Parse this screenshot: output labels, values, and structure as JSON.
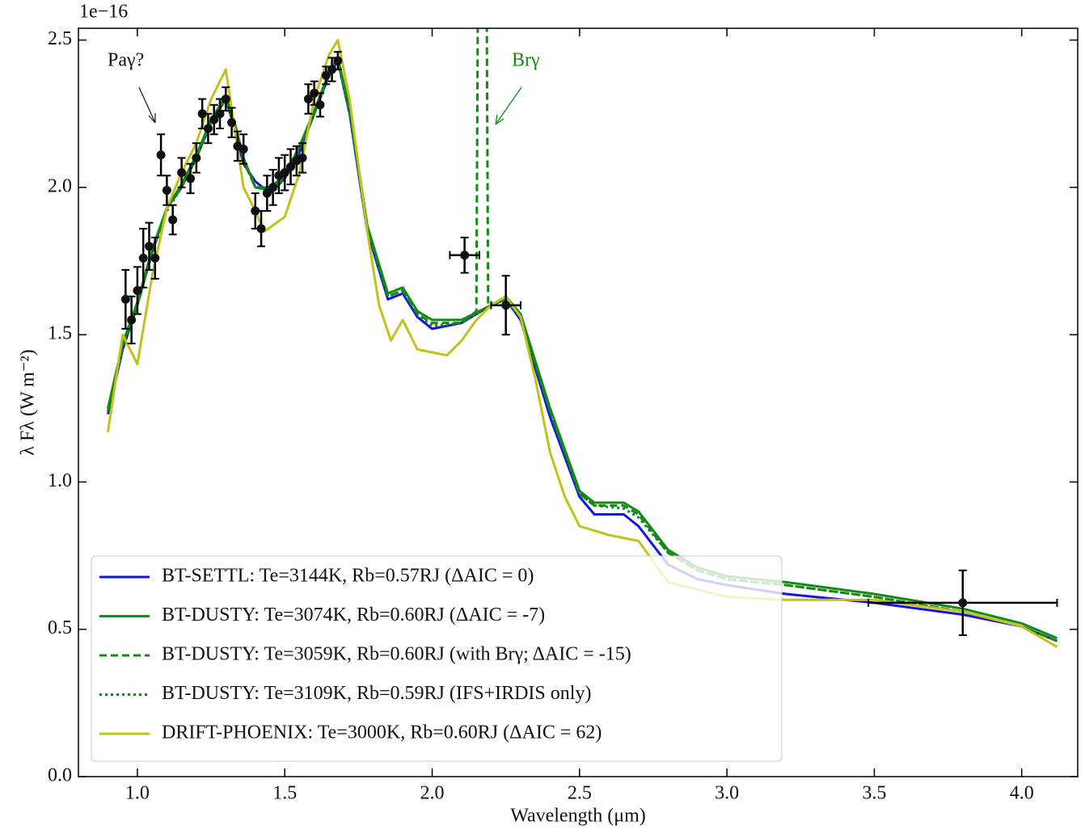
{
  "chart_data": {
    "type": "line",
    "offset_label": "1e−16",
    "xlabel": "Wavelength (μm)",
    "ylabel": "λ Fλ (W m⁻²)",
    "xlim": [
      0.8,
      4.19
    ],
    "ylim": [
      0,
      2.54
    ],
    "xticks": [
      {
        "value": 1,
        "label": "1.0"
      },
      1.5,
      {
        "value": 2,
        "label": "2.0"
      },
      2.5,
      {
        "value": 3,
        "label": "3.0"
      },
      3.5,
      {
        "value": 4,
        "label": "4.0"
      }
    ],
    "yticks": [
      {
        "value": 0,
        "label": "0.0"
      },
      0.5,
      {
        "value": 1,
        "label": "1.0"
      },
      1.5,
      {
        "value": 2,
        "label": "2.0"
      },
      2.5
    ],
    "legend": "lower left",
    "annotations": [
      "Paγ?",
      "Brγ"
    ],
    "series": [
      {
        "name": "BT-SETTL: Te=3144K, Rb=0.57RJ  (ΔAIC = 0)",
        "color": "#1414e6",
        "style": "solid",
        "x": [
          0.9,
          0.95,
          1.0,
          1.05,
          1.1,
          1.15,
          1.2,
          1.25,
          1.3,
          1.33,
          1.36,
          1.4,
          1.45,
          1.5,
          1.55,
          1.6,
          1.65,
          1.68,
          1.72,
          1.78,
          1.85,
          1.9,
          1.95,
          2.0,
          2.1,
          2.2,
          2.25,
          2.3,
          2.4,
          2.5,
          2.55,
          2.65,
          2.7,
          2.8,
          2.9,
          3.0,
          3.2,
          3.5,
          3.8,
          4.0,
          4.12
        ],
        "values": [
          1.23,
          1.45,
          1.6,
          1.78,
          1.93,
          2.0,
          2.1,
          2.22,
          2.3,
          2.2,
          2.08,
          2.02,
          1.98,
          2.03,
          2.12,
          2.25,
          2.38,
          2.43,
          2.25,
          1.85,
          1.62,
          1.64,
          1.56,
          1.52,
          1.54,
          1.6,
          1.62,
          1.55,
          1.22,
          0.95,
          0.89,
          0.89,
          0.85,
          0.72,
          0.67,
          0.65,
          0.62,
          0.59,
          0.55,
          0.51,
          0.46
        ]
      },
      {
        "name": "BT-DUSTY: Te=3074K, Rb=0.60RJ (ΔAIC = -7)",
        "color": "#138a13",
        "style": "solid",
        "x": [
          0.9,
          0.95,
          1.0,
          1.05,
          1.1,
          1.15,
          1.2,
          1.25,
          1.3,
          1.33,
          1.36,
          1.4,
          1.45,
          1.5,
          1.55,
          1.6,
          1.65,
          1.68,
          1.72,
          1.78,
          1.85,
          1.9,
          1.95,
          2.0,
          2.1,
          2.2,
          2.25,
          2.3,
          2.4,
          2.5,
          2.55,
          2.65,
          2.7,
          2.8,
          2.9,
          3.0,
          3.2,
          3.5,
          3.8,
          4.0,
          4.12
        ],
        "values": [
          1.25,
          1.47,
          1.61,
          1.79,
          1.93,
          2.01,
          2.11,
          2.23,
          2.31,
          2.22,
          2.1,
          2.0,
          2.0,
          2.04,
          2.14,
          2.26,
          2.39,
          2.44,
          2.27,
          1.87,
          1.64,
          1.66,
          1.58,
          1.55,
          1.55,
          1.6,
          1.63,
          1.57,
          1.25,
          0.97,
          0.93,
          0.93,
          0.9,
          0.77,
          0.71,
          0.68,
          0.66,
          0.62,
          0.57,
          0.52,
          0.47
        ]
      },
      {
        "name": "BT-DUSTY: Te=3059K, Rb=0.60RJ (with Brγ; ΔAIC = -15)",
        "color": "#138a13",
        "style": "dashed",
        "x": [
          0.9,
          0.95,
          1.0,
          1.05,
          1.1,
          1.15,
          1.2,
          1.25,
          1.3,
          1.33,
          1.36,
          1.4,
          1.45,
          1.5,
          1.55,
          1.6,
          1.65,
          1.68,
          1.72,
          1.78,
          1.85,
          1.9,
          1.95,
          2.0,
          2.1,
          2.15,
          2.155,
          2.185,
          2.19,
          2.25,
          2.3,
          2.4,
          2.5,
          2.55,
          2.65,
          2.7,
          2.8,
          2.9,
          3.0,
          3.2,
          3.5,
          3.8,
          4.0,
          4.12
        ],
        "values": [
          1.24,
          1.46,
          1.6,
          1.78,
          1.93,
          2.0,
          2.1,
          2.22,
          2.3,
          2.21,
          2.09,
          2.0,
          1.99,
          2.03,
          2.13,
          2.25,
          2.38,
          2.43,
          2.26,
          1.86,
          1.63,
          1.65,
          1.57,
          1.54,
          1.54,
          1.58,
          2.6,
          2.6,
          1.6,
          1.62,
          1.56,
          1.24,
          0.96,
          0.92,
          0.92,
          0.89,
          0.76,
          0.7,
          0.67,
          0.65,
          0.61,
          0.56,
          0.51,
          0.46
        ]
      },
      {
        "name": "BT-DUSTY: Te=3109K, Rb=0.59RJ (IFS+IRDIS only)",
        "color": "#138a13",
        "style": "dotted",
        "x": [
          0.9,
          0.95,
          1.0,
          1.05,
          1.1,
          1.15,
          1.2,
          1.25,
          1.3,
          1.33,
          1.36,
          1.4,
          1.45,
          1.5,
          1.55,
          1.6,
          1.65,
          1.68,
          1.72,
          1.78,
          1.85,
          1.9,
          1.95,
          2.0,
          2.1,
          2.2,
          2.25,
          2.3,
          2.4,
          2.5,
          2.55,
          2.65,
          2.7,
          2.8,
          2.9,
          3.0,
          3.2,
          3.5,
          3.8,
          4.0,
          4.12
        ],
        "values": [
          1.24,
          1.46,
          1.6,
          1.78,
          1.92,
          2.0,
          2.1,
          2.22,
          2.3,
          2.21,
          2.09,
          2.0,
          1.99,
          2.03,
          2.13,
          2.25,
          2.38,
          2.43,
          2.26,
          1.86,
          1.63,
          1.65,
          1.57,
          1.53,
          1.54,
          1.6,
          1.62,
          1.56,
          1.24,
          0.96,
          0.92,
          0.91,
          0.88,
          0.76,
          0.7,
          0.67,
          0.65,
          0.61,
          0.56,
          0.51,
          0.46
        ]
      },
      {
        "name": "DRIFT-PHOENIX: Te=3000K, Rb=0.60RJ (ΔAIC = 62)",
        "color": "#c2c21a",
        "style": "solid",
        "x": [
          0.9,
          0.95,
          1.0,
          1.05,
          1.1,
          1.15,
          1.2,
          1.25,
          1.3,
          1.33,
          1.36,
          1.4,
          1.43,
          1.5,
          1.55,
          1.6,
          1.65,
          1.68,
          1.72,
          1.78,
          1.82,
          1.86,
          1.9,
          1.95,
          2.0,
          2.05,
          2.1,
          2.15,
          2.2,
          2.25,
          2.3,
          2.35,
          2.4,
          2.45,
          2.5,
          2.6,
          2.7,
          2.8,
          3.0,
          3.2,
          3.5,
          3.8,
          4.0,
          4.12
        ],
        "values": [
          1.17,
          1.5,
          1.4,
          1.7,
          1.93,
          2.05,
          2.15,
          2.3,
          2.4,
          2.2,
          2.0,
          1.92,
          1.85,
          1.9,
          2.05,
          2.3,
          2.45,
          2.5,
          2.3,
          1.85,
          1.6,
          1.48,
          1.55,
          1.45,
          1.44,
          1.43,
          1.48,
          1.55,
          1.6,
          1.63,
          1.56,
          1.35,
          1.1,
          0.95,
          0.85,
          0.82,
          0.8,
          0.66,
          0.61,
          0.6,
          0.6,
          0.56,
          0.51,
          0.44
        ]
      }
    ],
    "points": {
      "x": [
        0.96,
        0.98,
        1.0,
        1.02,
        1.04,
        1.06,
        1.08,
        1.1,
        1.12,
        1.15,
        1.18,
        1.2,
        1.22,
        1.24,
        1.26,
        1.28,
        1.3,
        1.32,
        1.34,
        1.36,
        1.4,
        1.42,
        1.44,
        1.46,
        1.48,
        1.5,
        1.52,
        1.54,
        1.56,
        1.58,
        1.6,
        1.62,
        1.64,
        1.66,
        1.68
      ],
      "y": [
        1.62,
        1.55,
        1.65,
        1.76,
        1.8,
        1.76,
        2.11,
        1.99,
        1.89,
        2.05,
        2.03,
        2.1,
        2.25,
        2.2,
        2.23,
        2.25,
        2.3,
        2.22,
        2.14,
        2.13,
        1.92,
        1.86,
        1.98,
        2.0,
        2.04,
        2.05,
        2.07,
        2.09,
        2.1,
        2.3,
        2.32,
        2.28,
        2.38,
        2.4,
        2.43
      ],
      "yerr": [
        0.1,
        0.08,
        0.08,
        0.1,
        0.08,
        0.07,
        0.07,
        0.05,
        0.05,
        0.05,
        0.05,
        0.05,
        0.05,
        0.05,
        0.05,
        0.05,
        0.04,
        0.05,
        0.05,
        0.05,
        0.06,
        0.06,
        0.06,
        0.06,
        0.06,
        0.06,
        0.06,
        0.05,
        0.05,
        0.05,
        0.04,
        0.04,
        0.03,
        0.04,
        0.03
      ]
    },
    "photometry": {
      "x": [
        2.11,
        2.25,
        3.8
      ],
      "y": [
        1.77,
        1.6,
        0.59
      ],
      "yerr": [
        0.06,
        0.1,
        0.11
      ],
      "xerr": [
        0.05,
        0.05,
        0.32
      ]
    }
  }
}
